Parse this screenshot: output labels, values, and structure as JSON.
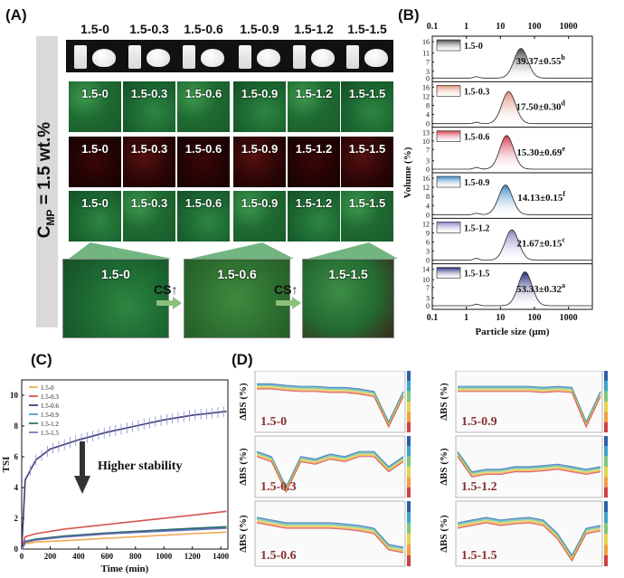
{
  "panel_a": {
    "letter": "(A)",
    "vertical_label": "C",
    "vertical_label_sub": "MP",
    "vertical_label_tail": " = 1.5 wt.%",
    "samples": [
      "1.5-0",
      "1.5-0.3",
      "1.5-0.6",
      "1.5-0.9",
      "1.5-1.2",
      "1.5-1.5"
    ],
    "zoom_samples": [
      "1.5-0",
      "1.5-0.6",
      "1.5-1.5"
    ],
    "arrow_label": "CS↑"
  },
  "panel_b": {
    "letter": "(B)",
    "chart_data": {
      "type": "area",
      "xlabel": "Particle size (μm)",
      "ylabel": "Volume (%)",
      "xscale": "log",
      "xlim": [
        0.1,
        5000
      ],
      "xticks": [
        "0.1",
        "1",
        "10",
        "100",
        "1000"
      ],
      "series": [
        {
          "name": "1.5-0",
          "value": "39.37±0.55",
          "sup": "b",
          "peak_um": 40,
          "peak_vol": 13,
          "ymax": 16,
          "yticks": [
            "0",
            "3",
            "7",
            "11",
            "16"
          ],
          "color": "#444444"
        },
        {
          "name": "1.5-0.3",
          "value": "17.50±0.30",
          "sup": "d",
          "peak_um": 17.5,
          "peak_vol": 14,
          "ymax": 16,
          "yticks": [
            "0",
            "4",
            "8",
            "12",
            "16"
          ],
          "color": "#e0907a"
        },
        {
          "name": "1.5-0.6",
          "value": "15.30±0.69",
          "sup": "e",
          "peak_um": 15.3,
          "peak_vol": 12,
          "ymax": 13,
          "yticks": [
            "0",
            "3",
            "7",
            "10",
            "13"
          ],
          "color": "#d2384a"
        },
        {
          "name": "1.5-0.9",
          "value": "14.13±0.15",
          "sup": "f",
          "peak_um": 14.1,
          "peak_vol": 13,
          "ymax": 16,
          "yticks": [
            "0",
            "4",
            "8",
            "12",
            "16"
          ],
          "color": "#3b86c3"
        },
        {
          "name": "1.5-1.2",
          "value": "21.67±0.15",
          "sup": "c",
          "peak_um": 21.7,
          "peak_vol": 10,
          "ymax": 12,
          "yticks": [
            "0",
            "3",
            "6",
            "9",
            "12"
          ],
          "color": "#8a7bc0"
        },
        {
          "name": "1.5-1.5",
          "value": "53.33±0.32",
          "sup": "a",
          "peak_um": 53,
          "peak_vol": 13,
          "ymax": 14,
          "yticks": [
            "0",
            "3",
            "7",
            "10",
            "14"
          ],
          "color": "#27287a"
        }
      ]
    }
  },
  "panel_c": {
    "letter": "(C)",
    "chart_data": {
      "type": "line",
      "xlabel": "Time (min)",
      "ylabel": "TSI",
      "xlim": [
        0,
        1450
      ],
      "ylim": [
        0,
        11
      ],
      "xticks": [
        0,
        200,
        400,
        600,
        800,
        1000,
        1200,
        1400
      ],
      "yticks": [
        0,
        2,
        4,
        6,
        8,
        10
      ],
      "annotation": "Higher stability",
      "series": [
        {
          "name": "1.5-0",
          "color": "#f0a040",
          "x": [
            0,
            25,
            100,
            300,
            600,
            900,
            1200,
            1440
          ],
          "y": [
            0,
            0.35,
            0.45,
            0.55,
            0.7,
            0.85,
            1.0,
            1.1
          ]
        },
        {
          "name": "1.5-0.3",
          "color": "#d04040",
          "x": [
            0,
            25,
            100,
            300,
            600,
            900,
            1200,
            1440
          ],
          "y": [
            0,
            0.8,
            1.0,
            1.3,
            1.6,
            1.9,
            2.2,
            2.45
          ]
        },
        {
          "name": "1.5-0.6",
          "color": "#2a2a6a",
          "x": [
            0,
            25,
            100,
            200,
            400,
            600,
            800,
            1000,
            1200,
            1440
          ],
          "y": [
            0,
            4.5,
            5.8,
            6.5,
            7.1,
            7.6,
            8.0,
            8.4,
            8.7,
            8.95
          ]
        },
        {
          "name": "1.5-0.9",
          "color": "#3a8fd0",
          "x": [
            0,
            25,
            100,
            300,
            600,
            900,
            1200,
            1440
          ],
          "y": [
            0,
            0.45,
            0.6,
            0.8,
            1.0,
            1.15,
            1.3,
            1.4
          ]
        },
        {
          "name": "1.5-1.2",
          "color": "#1a6060",
          "x": [
            0,
            25,
            100,
            300,
            600,
            900,
            1200,
            1440
          ],
          "y": [
            0,
            0.5,
            0.65,
            0.85,
            1.05,
            1.2,
            1.35,
            1.45
          ]
        },
        {
          "name": "1.5-1.5",
          "color": "#6a6ab0",
          "x": [
            0,
            25,
            100,
            300,
            600,
            900,
            1200,
            1440
          ],
          "y": [
            0,
            0.45,
            0.58,
            0.78,
            0.98,
            1.12,
            1.25,
            1.35
          ]
        }
      ]
    }
  },
  "panel_d": {
    "letter": "(D)",
    "ylabel": "ΔBS (%)",
    "plots": [
      "1.5-0",
      "1.5-0.3",
      "1.5-0.6",
      "1.5-0.9",
      "1.5-1.2",
      "1.5-1.5"
    ]
  }
}
